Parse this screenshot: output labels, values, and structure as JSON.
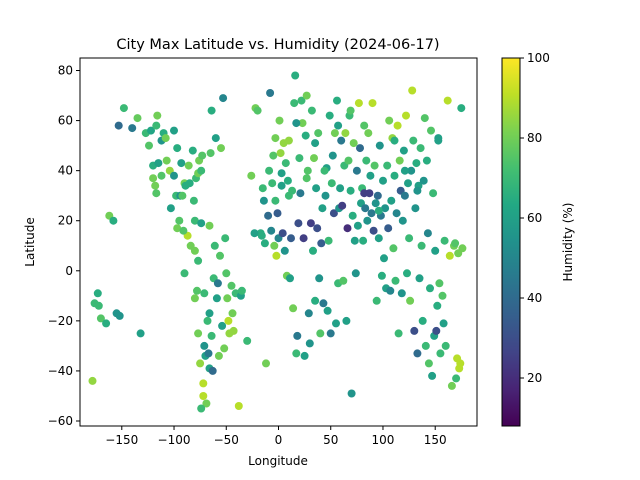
{
  "chart_data": {
    "type": "scatter",
    "title": "City Max Latitude vs. Humidity (2024-06-17)",
    "xlabel": "Longitude",
    "ylabel": "Latitude",
    "colorbar_label": "Humidity (%)",
    "xlim": [
      -190,
      190
    ],
    "ylim": [
      -62,
      85
    ],
    "xticks": [
      -150,
      -100,
      -50,
      0,
      50,
      100,
      150
    ],
    "yticks": [
      -60,
      -40,
      -20,
      0,
      20,
      40,
      60,
      80
    ],
    "colorbar_range": [
      8,
      100
    ],
    "colorbar_ticks": [
      20,
      40,
      60,
      80,
      100
    ],
    "colormap": "viridis",
    "grid": false,
    "points": [
      [
        -178,
        -44,
        85
      ],
      [
        -176,
        -13,
        70
      ],
      [
        -173,
        -9,
        65
      ],
      [
        -172,
        -14,
        70
      ],
      [
        -170,
        -19,
        75
      ],
      [
        -165,
        -21,
        65
      ],
      [
        -162,
        22,
        80
      ],
      [
        -158,
        20,
        65
      ],
      [
        -155,
        -17,
        55
      ],
      [
        -152,
        -18,
        55
      ],
      [
        -153,
        58,
        40
      ],
      [
        -148,
        65,
        70
      ],
      [
        -140,
        57,
        45
      ],
      [
        -135,
        61,
        78
      ],
      [
        -132,
        -25,
        60
      ],
      [
        -127,
        55,
        70
      ],
      [
        -124,
        50,
        75
      ],
      [
        -122,
        56,
        62
      ],
      [
        -120,
        42,
        65
      ],
      [
        -120,
        37,
        80
      ],
      [
        -118,
        34,
        80
      ],
      [
        -116,
        62,
        80
      ],
      [
        -115,
        43,
        60
      ],
      [
        -112,
        52,
        55
      ],
      [
        -110,
        55,
        65
      ],
      [
        -107,
        44,
        80
      ],
      [
        -104,
        40,
        85
      ],
      [
        -103,
        25,
        60
      ],
      [
        -100,
        56,
        60
      ],
      [
        -100,
        38,
        55
      ],
      [
        -98,
        30,
        70
      ],
      [
        -97,
        49,
        65
      ],
      [
        -95,
        20,
        75
      ],
      [
        -94,
        30,
        55
      ],
      [
        -93,
        43,
        60
      ],
      [
        -90,
        35,
        80
      ],
      [
        -90,
        -1,
        70
      ],
      [
        -87,
        14,
        90
      ],
      [
        -85,
        35,
        65
      ],
      [
        -84,
        10,
        80
      ],
      [
        -82,
        48,
        65
      ],
      [
        -81,
        28,
        70
      ],
      [
        -80,
        8,
        80
      ],
      [
        -79,
        37,
        70
      ],
      [
        -78,
        -8,
        75
      ],
      [
        -77,
        39,
        80
      ],
      [
        -76,
        44,
        80
      ],
      [
        -75,
        -37,
        85
      ],
      [
        -74,
        40,
        70
      ],
      [
        -73,
        46,
        75
      ],
      [
        -72,
        -45,
        90
      ],
      [
        -71,
        -30,
        55
      ],
      [
        -70,
        -34,
        60
      ],
      [
        -69,
        -53,
        80
      ],
      [
        -68,
        -20,
        70
      ],
      [
        -67,
        -33,
        45
      ],
      [
        -66,
        -17,
        60
      ],
      [
        -65,
        47,
        75
      ],
      [
        -64,
        64,
        65
      ],
      [
        -62,
        -3,
        70
      ],
      [
        -61,
        10,
        70
      ],
      [
        -60,
        53,
        60
      ],
      [
        -58,
        -5,
        45
      ],
      [
        -57,
        -34,
        80
      ],
      [
        -55,
        49,
        80
      ],
      [
        -54,
        -22,
        60
      ],
      [
        -53,
        69,
        50
      ],
      [
        -52,
        -31,
        80
      ],
      [
        -50,
        -1,
        75
      ],
      [
        -49,
        -11,
        80
      ],
      [
        -48,
        -20,
        90
      ],
      [
        -47,
        -25,
        85
      ],
      [
        -45,
        -6,
        75
      ],
      [
        -43,
        -24,
        85
      ],
      [
        -41,
        -9,
        70
      ],
      [
        -38,
        -54,
        90
      ],
      [
        -36,
        -10,
        60
      ],
      [
        -35,
        -8,
        70
      ],
      [
        -26,
        38,
        80
      ],
      [
        -22,
        65,
        80
      ],
      [
        -20,
        64,
        75
      ],
      [
        -17,
        15,
        65
      ],
      [
        -15,
        33,
        70
      ],
      [
        -14,
        28,
        55
      ],
      [
        -13,
        11,
        65
      ],
      [
        -12,
        -37,
        80
      ],
      [
        -10,
        22,
        40
      ],
      [
        -9,
        40,
        70
      ],
      [
        -8,
        71,
        45
      ],
      [
        -6,
        35,
        70
      ],
      [
        -5,
        46,
        75
      ],
      [
        -4,
        10,
        80
      ],
      [
        -3,
        53,
        80
      ],
      [
        -2,
        6,
        90
      ],
      [
        -1,
        23,
        35
      ],
      [
        0,
        13,
        50
      ],
      [
        1,
        60,
        80
      ],
      [
        2,
        47,
        85
      ],
      [
        3,
        39,
        60
      ],
      [
        4,
        15,
        30
      ],
      [
        5,
        51,
        85
      ],
      [
        6,
        8,
        55
      ],
      [
        7,
        43,
        70
      ],
      [
        8,
        -2,
        80
      ],
      [
        9,
        36,
        65
      ],
      [
        10,
        30,
        70
      ],
      [
        10,
        52,
        85
      ],
      [
        11,
        -3,
        60
      ],
      [
        12,
        13,
        35
      ],
      [
        13,
        32,
        70
      ],
      [
        14,
        -15,
        80
      ],
      [
        15,
        67,
        70
      ],
      [
        16,
        78,
        65
      ],
      [
        17,
        -33,
        70
      ],
      [
        18,
        -26,
        45
      ],
      [
        19,
        19,
        30
      ],
      [
        20,
        45,
        70
      ],
      [
        21,
        31,
        45
      ],
      [
        22,
        68,
        70
      ],
      [
        23,
        59,
        80
      ],
      [
        24,
        13,
        25
      ],
      [
        25,
        -34,
        60
      ],
      [
        26,
        54,
        65
      ],
      [
        27,
        70,
        80
      ],
      [
        28,
        40,
        75
      ],
      [
        29,
        -17,
        50
      ],
      [
        30,
        -29,
        55
      ],
      [
        31,
        19,
        25
      ],
      [
        32,
        64,
        70
      ],
      [
        33,
        8,
        65
      ],
      [
        34,
        45,
        80
      ],
      [
        35,
        -12,
        65
      ],
      [
        36,
        33,
        60
      ],
      [
        37,
        17,
        30
      ],
      [
        38,
        55,
        75
      ],
      [
        39,
        -3,
        55
      ],
      [
        40,
        -25,
        75
      ],
      [
        41,
        11,
        35
      ],
      [
        42,
        25,
        60
      ],
      [
        43,
        -13,
        45
      ],
      [
        45,
        30,
        55
      ],
      [
        46,
        41,
        60
      ],
      [
        47,
        -16,
        60
      ],
      [
        48,
        12,
        70
      ],
      [
        49,
        62,
        65
      ],
      [
        50,
        -25,
        45
      ],
      [
        51,
        35,
        70
      ],
      [
        52,
        46,
        55
      ],
      [
        53,
        23,
        30
      ],
      [
        54,
        55,
        80
      ],
      [
        55,
        -21,
        60
      ],
      [
        56,
        68,
        65
      ],
      [
        57,
        -5,
        70
      ],
      [
        58,
        25,
        55
      ],
      [
        59,
        33,
        60
      ],
      [
        60,
        52,
        45
      ],
      [
        61,
        26,
        25
      ],
      [
        62,
        -4,
        75
      ],
      [
        63,
        42,
        70
      ],
      [
        64,
        55,
        85
      ],
      [
        65,
        -20,
        60
      ],
      [
        66,
        17,
        20
      ],
      [
        67,
        44,
        75
      ],
      [
        68,
        62,
        70
      ],
      [
        69,
        32,
        65
      ],
      [
        70,
        -49,
        55
      ],
      [
        71,
        22,
        65
      ],
      [
        72,
        51,
        80
      ],
      [
        73,
        12,
        60
      ],
      [
        74,
        -1,
        55
      ],
      [
        75,
        40,
        45
      ],
      [
        76,
        18,
        60
      ],
      [
        77,
        67,
        90
      ],
      [
        78,
        49,
        40
      ],
      [
        79,
        27,
        60
      ],
      [
        80,
        33,
        70
      ],
      [
        81,
        12,
        65
      ],
      [
        82,
        58,
        75
      ],
      [
        83,
        25,
        45
      ],
      [
        84,
        44,
        70
      ],
      [
        85,
        20,
        55
      ],
      [
        86,
        55,
        80
      ],
      [
        87,
        31,
        25
      ],
      [
        88,
        38,
        60
      ],
      [
        89,
        23,
        45
      ],
      [
        90,
        67,
        90
      ],
      [
        91,
        16,
        30
      ],
      [
        92,
        42,
        75
      ],
      [
        93,
        27,
        55
      ],
      [
        94,
        -12,
        70
      ],
      [
        95,
        30,
        40
      ],
      [
        96,
        13,
        60
      ],
      [
        97,
        50,
        55
      ],
      [
        98,
        22,
        45
      ],
      [
        99,
        -2,
        65
      ],
      [
        100,
        36,
        60
      ],
      [
        101,
        5,
        60
      ],
      [
        102,
        25,
        55
      ],
      [
        103,
        -7,
        60
      ],
      [
        104,
        42,
        70
      ],
      [
        105,
        17,
        35
      ],
      [
        106,
        60,
        80
      ],
      [
        107,
        -8,
        50
      ],
      [
        108,
        28,
        60
      ],
      [
        109,
        53,
        85
      ],
      [
        110,
        9,
        75
      ],
      [
        111,
        38,
        65
      ],
      [
        112,
        -4,
        70
      ],
      [
        113,
        23,
        50
      ],
      [
        114,
        58,
        90
      ],
      [
        115,
        -25,
        70
      ],
      [
        116,
        44,
        80
      ],
      [
        117,
        32,
        35
      ],
      [
        118,
        -9,
        55
      ],
      [
        119,
        20,
        55
      ],
      [
        120,
        48,
        60
      ],
      [
        121,
        30,
        45
      ],
      [
        122,
        62,
        90
      ],
      [
        123,
        -1,
        65
      ],
      [
        124,
        35,
        60
      ],
      [
        125,
        13,
        70
      ],
      [
        126,
        -12,
        80
      ],
      [
        127,
        40,
        55
      ],
      [
        128,
        72,
        90
      ],
      [
        129,
        52,
        70
      ],
      [
        130,
        -24,
        30
      ],
      [
        131,
        25,
        55
      ],
      [
        132,
        43,
        65
      ],
      [
        133,
        -33,
        40
      ],
      [
        134,
        34,
        60
      ],
      [
        135,
        -3,
        60
      ],
      [
        136,
        49,
        70
      ],
      [
        137,
        10,
        70
      ],
      [
        138,
        -20,
        65
      ],
      [
        139,
        36,
        55
      ],
      [
        140,
        61,
        75
      ],
      [
        141,
        -30,
        70
      ],
      [
        142,
        44,
        65
      ],
      [
        143,
        15,
        50
      ],
      [
        144,
        -37,
        75
      ],
      [
        145,
        -7,
        65
      ],
      [
        146,
        56,
        75
      ],
      [
        147,
        -42,
        60
      ],
      [
        148,
        31,
        70
      ],
      [
        149,
        -26,
        60
      ],
      [
        150,
        8,
        60
      ],
      [
        151,
        -24,
        30
      ],
      [
        152,
        -14,
        65
      ],
      [
        153,
        53,
        60
      ],
      [
        154,
        -5,
        75
      ],
      [
        155,
        -33,
        70
      ],
      [
        157,
        -10,
        75
      ],
      [
        158,
        -21,
        60
      ],
      [
        159,
        12,
        70
      ],
      [
        160,
        -30,
        70
      ],
      [
        162,
        68,
        90
      ],
      [
        164,
        6,
        90
      ],
      [
        166,
        -46,
        80
      ],
      [
        168,
        10,
        80
      ],
      [
        169,
        11,
        75
      ],
      [
        170,
        -43,
        70
      ],
      [
        171,
        -35,
        90
      ],
      [
        172,
        7,
        80
      ],
      [
        173,
        -39,
        90
      ],
      [
        174,
        -37,
        90
      ],
      [
        175,
        65,
        65
      ],
      [
        176,
        9,
        80
      ],
      [
        -72,
        -50,
        90
      ],
      [
        -74,
        -55,
        70
      ],
      [
        -66,
        -39,
        60
      ],
      [
        -80,
        -11,
        80
      ],
      [
        -71,
        -9,
        70
      ],
      [
        -64,
        -26,
        70
      ],
      [
        -59,
        -11,
        60
      ],
      [
        -44,
        -17,
        80
      ],
      [
        -30,
        -28,
        70
      ],
      [
        -77,
        -25,
        80
      ],
      [
        -63,
        -40,
        40
      ],
      [
        -86,
        42,
        80
      ],
      [
        -89,
        34,
        65
      ],
      [
        -92,
        30,
        75
      ],
      [
        -108,
        53,
        80
      ],
      [
        -112,
        38,
        75
      ],
      [
        -117,
        58,
        70
      ],
      [
        -97,
        17,
        80
      ],
      [
        -91,
        16,
        75
      ],
      [
        -80,
        20,
        70
      ],
      [
        -77,
        4,
        70
      ],
      [
        -74,
        19,
        60
      ],
      [
        -56,
        6,
        75
      ],
      [
        -51,
        13,
        70
      ],
      [
        -66,
        18,
        80
      ],
      [
        -23,
        15,
        60
      ],
      [
        -16,
        14,
        65
      ],
      [
        -7,
        16,
        50
      ],
      [
        -3,
        28,
        70
      ],
      [
        3,
        34,
        60
      ],
      [
        17,
        59,
        55
      ],
      [
        27,
        37,
        75
      ],
      [
        35,
        51,
        60
      ],
      [
        44,
        40,
        70
      ],
      [
        57,
        58,
        60
      ],
      [
        69,
        64,
        75
      ],
      [
        82,
        31,
        25
      ],
      [
        96,
        24,
        65
      ],
      [
        111,
        52,
        65
      ],
      [
        121,
        40,
        60
      ],
      [
        133,
        32,
        55
      ],
      [
        153,
        52,
        60
      ],
      [
        -117,
        31,
        75
      ]
    ]
  }
}
